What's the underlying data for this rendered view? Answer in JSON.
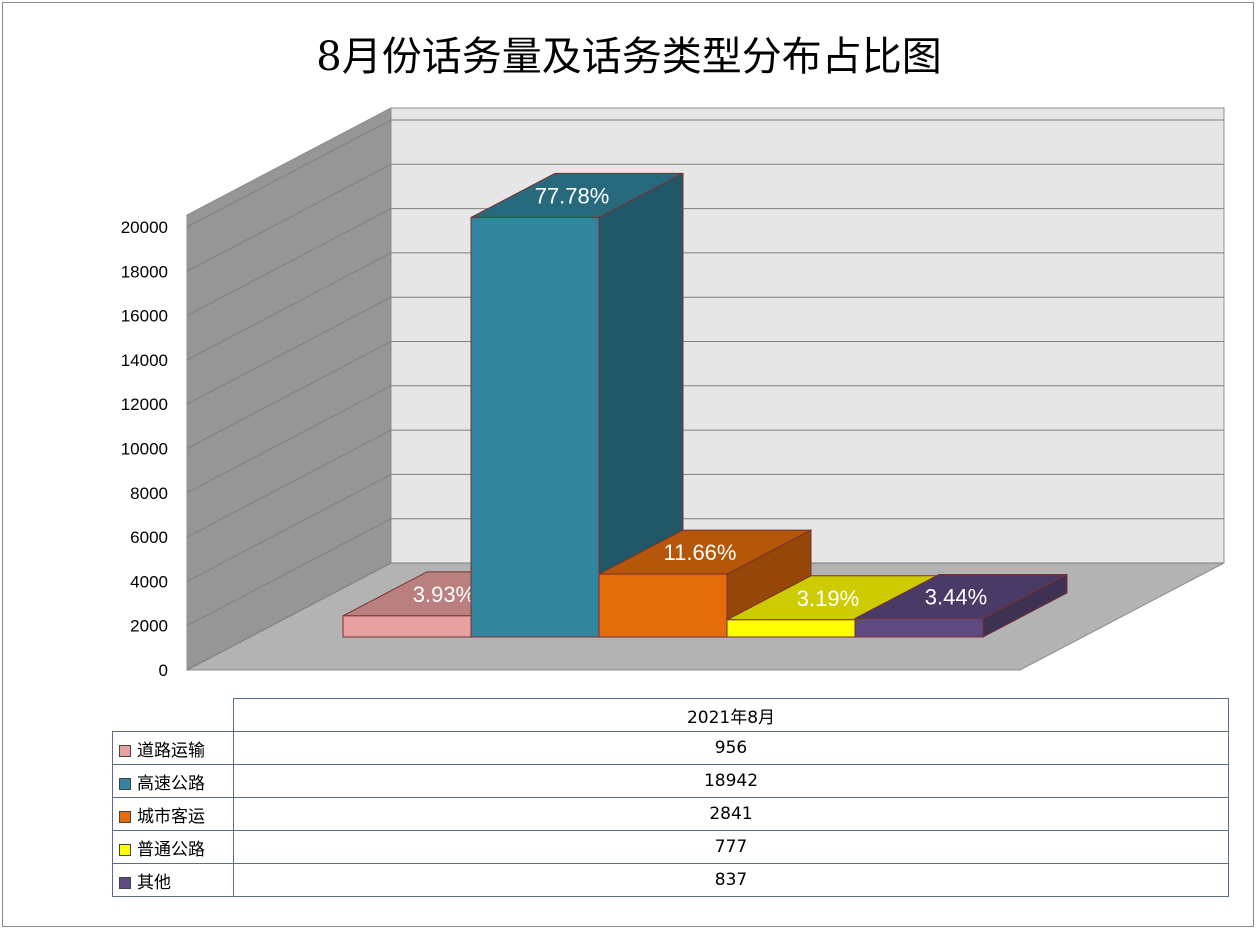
{
  "chart_data": {
    "type": "bar",
    "title": "8月份话务量及话务类型分布占比图",
    "categories": [
      "2021年8月"
    ],
    "series": [
      {
        "name": "道路运输",
        "values": [
          956
        ],
        "label": "3.93%",
        "color": "#e8a0a0"
      },
      {
        "name": "高速公路",
        "values": [
          18942
        ],
        "label": "77.78%",
        "color": "#31859c"
      },
      {
        "name": "城市客运",
        "values": [
          2841
        ],
        "label": "11.66%",
        "color": "#e46c0a"
      },
      {
        "name": "普通公路",
        "values": [
          777
        ],
        "label": "3.19%",
        "color": "#ffff00"
      },
      {
        "name": "其他",
        "values": [
          837
        ],
        "label": "3.44%",
        "color": "#5c4a80"
      }
    ],
    "ylim": [
      0,
      20000
    ],
    "yticks": [
      "0",
      "2000",
      "4000",
      "6000",
      "8000",
      "10000",
      "12000",
      "14000",
      "16000",
      "18000",
      "20000"
    ],
    "grid": true,
    "legend": "data-table"
  },
  "table": {
    "header": "2021年8月",
    "rows": [
      {
        "name": "道路运输",
        "value": "956"
      },
      {
        "name": "高速公路",
        "value": "18942"
      },
      {
        "name": "城市客运",
        "value": "2841"
      },
      {
        "name": "普通公路",
        "value": "777"
      },
      {
        "name": "其他",
        "value": "837"
      }
    ]
  }
}
